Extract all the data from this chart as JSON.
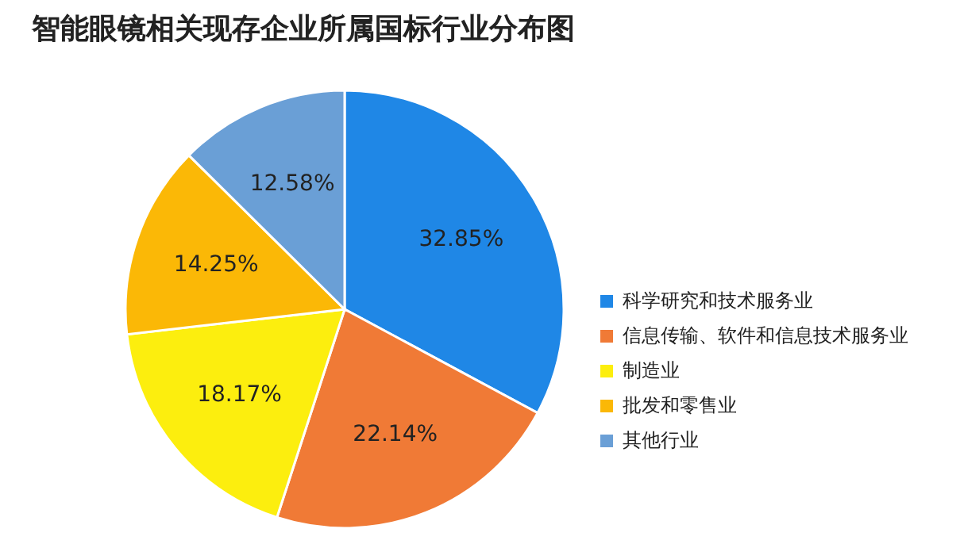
{
  "chart_data": {
    "type": "pie",
    "title": "智能眼镜相关现存企业所属国标行业分布图",
    "categories": [
      "科学研究和技术服务业",
      "信息传输、软件和信息技术服务业",
      "制造业",
      "批发和零售业",
      "其他行业"
    ],
    "values": [
      32.85,
      22.14,
      18.17,
      14.25,
      12.58
    ],
    "colors": [
      "#1f87e6",
      "#f07a36",
      "#fcee0e",
      "#fbb806",
      "#6a9fd6"
    ],
    "value_labels": [
      "32.85%",
      "22.14%",
      "18.17%",
      "14.25%",
      "12.58%"
    ],
    "legend": "right"
  }
}
